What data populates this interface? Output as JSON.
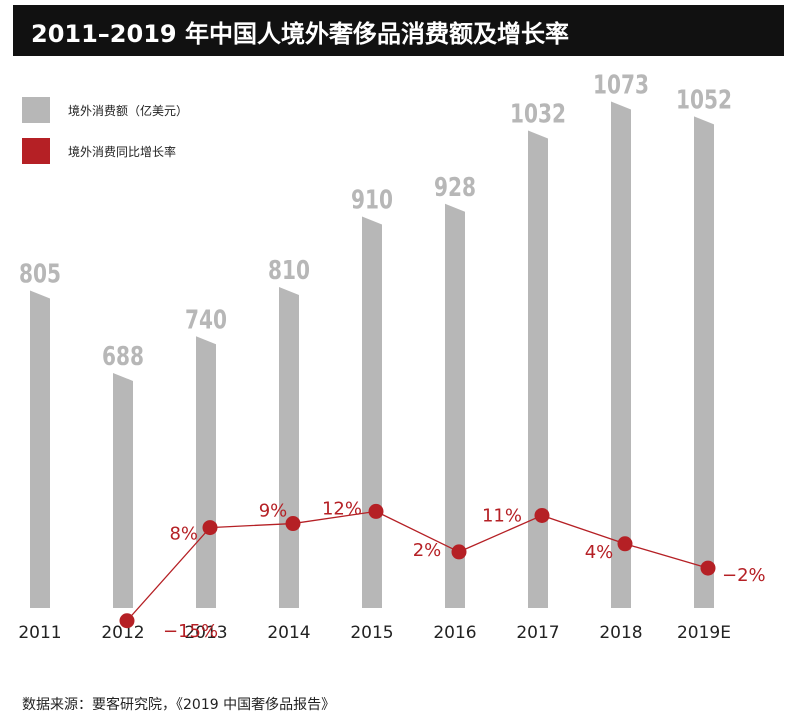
{
  "title": "2011–2019 年中国人境外奢侈品消费额及增长率",
  "source": "数据来源：要客研究院，《2019 中国奢侈品报告》",
  "colors": {
    "bar": "#b7b7b7",
    "line": "#b52025",
    "title_bg": "#111111",
    "axis_text": "#222222"
  },
  "chart_data": {
    "type": "bar",
    "categories": [
      "2011",
      "2012",
      "2013",
      "2014",
      "2015",
      "2016",
      "2017",
      "2018",
      "2019E"
    ],
    "series": [
      {
        "name": "境外消费额（亿美元）",
        "type": "bar",
        "values": [
          805,
          688,
          740,
          810,
          910,
          928,
          1032,
          1073,
          1052
        ],
        "labels": [
          "805",
          "688",
          "740",
          "810",
          "910",
          "928",
          "1032",
          "1073",
          "1052"
        ]
      },
      {
        "name": "境外消费同比增长率",
        "type": "line",
        "unit": "%",
        "values": [
          null,
          -15,
          8,
          9,
          12,
          2,
          11,
          4,
          -2
        ],
        "labels": [
          "",
          "−15%",
          "8%",
          "9%",
          "12%",
          "2%",
          "11%",
          "4%",
          "−2%"
        ]
      }
    ],
    "legend": "top-left",
    "grid": false
  }
}
